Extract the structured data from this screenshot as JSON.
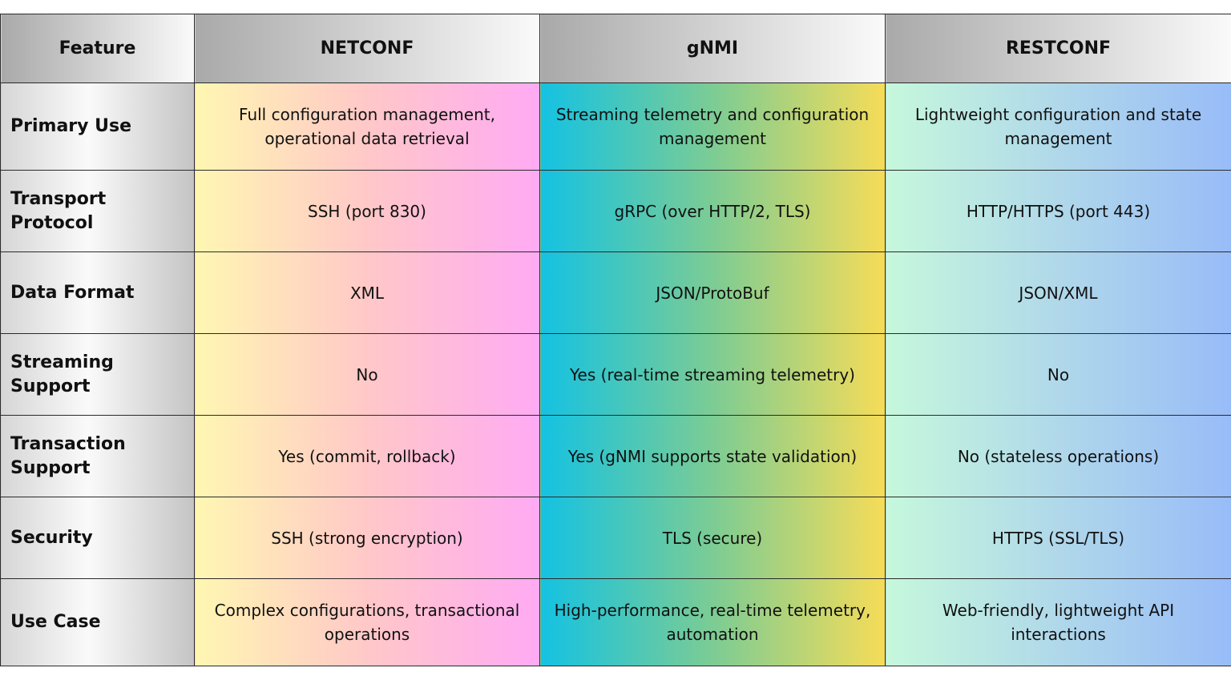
{
  "table": {
    "header": [
      "Feature",
      "NETCONF",
      "gNMI",
      "RESTCONF"
    ],
    "rows": [
      [
        "Primary Use",
        "Full configuration management, operational data retrieval",
        "Streaming telemetry and configuration management",
        "Lightweight configuration and state management"
      ],
      [
        "Transport Protocol",
        "SSH (port 830)",
        "gRPC (over HTTP/2, TLS)",
        "HTTP/HTTPS (port 443)"
      ],
      [
        "Data Format",
        "XML",
        "JSON/ProtoBuf",
        "JSON/XML"
      ],
      [
        "Streaming Support",
        "No",
        "Yes (real-time streaming telemetry)",
        "No"
      ],
      [
        "Transaction Support",
        "Yes (commit, rollback)",
        "Yes (gNMI supports state validation)",
        "No (stateless operations)"
      ],
      [
        "Security",
        "SSH (strong encryption)",
        "TLS (secure)",
        "HTTPS (SSL/TLS)"
      ],
      [
        "Use Case",
        "Complex configurations, transactional operations",
        "High-performance, real-time telemetry, automation",
        "Web-friendly, lightweight API interactions"
      ]
    ]
  }
}
